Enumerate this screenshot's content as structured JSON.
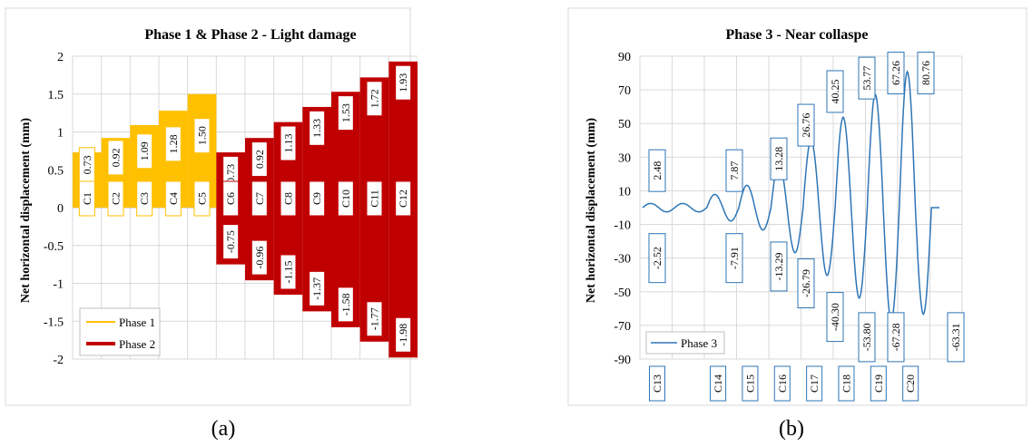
{
  "captions": {
    "a": "(a)",
    "b": "(b)"
  },
  "chart_data": [
    {
      "type": "area",
      "title": "Phase 1 & Phase 2 - Light damage",
      "ylabel": "Net horizontal displacement (mm)",
      "xlabel": "",
      "ylim": [
        -2,
        2
      ],
      "yticks": [
        2,
        1.5,
        1,
        0.5,
        0,
        -0.5,
        -1,
        -1.5,
        -2
      ],
      "grid": true,
      "legend_position": "bottom-left",
      "categories": [
        "C1",
        "C2",
        "C3",
        "C4",
        "C5",
        "C6",
        "C7",
        "C8",
        "C9",
        "C10",
        "C11",
        "C12"
      ],
      "series": [
        {
          "name": "Phase 1",
          "color": "#FFC000",
          "max": [
            0.73,
            0.92,
            1.09,
            1.28,
            1.5
          ],
          "max_labels": [
            "0.73",
            "0.92",
            "1.09",
            "1.28",
            "1.50"
          ]
        },
        {
          "name": "Phase 2",
          "color": "#C00000",
          "max": [
            0.73,
            0.92,
            1.13,
            1.33,
            1.53,
            1.72,
            1.93
          ],
          "min": [
            -0.75,
            -0.96,
            -1.15,
            -1.37,
            -1.58,
            -1.77,
            -1.98
          ],
          "max_labels": [
            "0.73",
            "0.92",
            "1.13",
            "1.33",
            "1.53",
            "1.72",
            "1.93"
          ],
          "min_labels": [
            "-0.75",
            "-0.96",
            "-1.15",
            "-1.37",
            "-1.58",
            "-1.77",
            "-1.98"
          ]
        }
      ]
    },
    {
      "type": "line",
      "title": "Phase 3 - Near collaspe",
      "ylabel": "Net horizontal displacement (mm)",
      "xlabel": "",
      "ylim": [
        -90,
        90
      ],
      "yticks": [
        90,
        70,
        50,
        30,
        10,
        -10,
        -30,
        -50,
        -70,
        -90
      ],
      "grid": true,
      "legend_position": "bottom-left",
      "series": [
        {
          "name": "Phase 3",
          "color": "#2E75B6"
        }
      ],
      "cycles": [
        "C13",
        "C14",
        "C15",
        "C16",
        "C17",
        "C18",
        "C19",
        "C20"
      ],
      "peaks": [
        2.48,
        7.87,
        13.28,
        26.76,
        40.25,
        53.77,
        67.26,
        80.76
      ],
      "troughs": [
        -2.52,
        -7.91,
        -13.29,
        -26.79,
        -40.3,
        -53.8,
        -67.28,
        -63.31
      ],
      "peak_labels": [
        "2.48",
        "7.87",
        "13.28",
        "26.76",
        "40.25",
        "53.77",
        "67.26",
        "80.76"
      ],
      "trough_labels": [
        "-2.52",
        "-7.91",
        "-13.29",
        "-26.79",
        "-40.30",
        "-53.80",
        "-67.28",
        "-63.31"
      ]
    }
  ]
}
